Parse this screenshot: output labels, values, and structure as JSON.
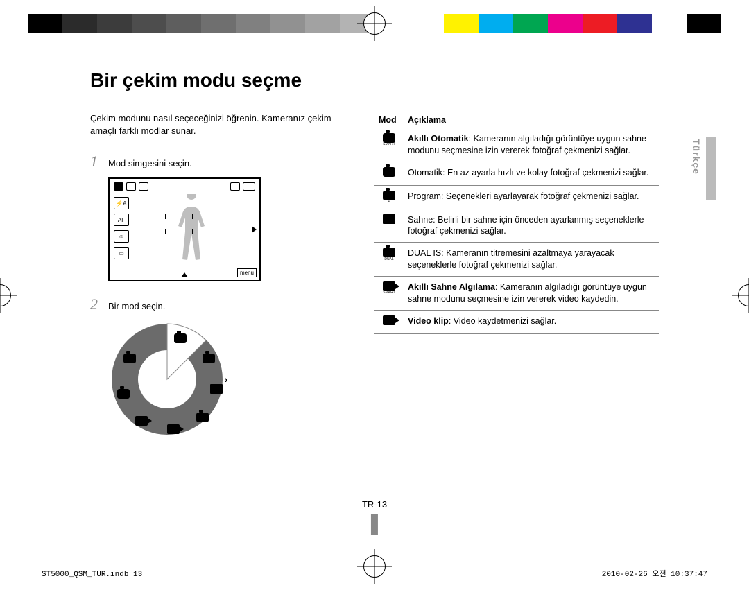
{
  "colorbar": [
    "#000000",
    "#2b2b2b",
    "#3c3c3c",
    "#4d4d4d",
    "#5e5e5e",
    "#6f6f6f",
    "#808080",
    "#919191",
    "#a2a2a2",
    "#b3b3b3",
    "#ffffff",
    "#ffffff",
    "#fff200",
    "#00adef",
    "#00a651",
    "#ec008c",
    "#ed1c24",
    "#2e3192",
    "#ffffff",
    "#000000"
  ],
  "heading": "Bir çekim modu seçme",
  "intro": "Çekim modunu nasıl seçeceğinizi öğrenin. Kameranız çekim amaçlı farklı modlar sunar.",
  "steps": {
    "1": {
      "num": "1",
      "text": "Mod simgesini seçin."
    },
    "2": {
      "num": "2",
      "text": "Bir mod seçin."
    }
  },
  "screen": {
    "menu": "menu"
  },
  "table": {
    "head": {
      "mod": "Mod",
      "desc": "Açıklama"
    },
    "rows": [
      {
        "icon": "cam-smart",
        "bold": "Akıllı Otomatik",
        "text": ": Kameranın algıladığı görüntüye uygun sahne modunu seçmesine izin vererek fotoğraf çekmenizi sağlar."
      },
      {
        "icon": "cam",
        "bold": "",
        "text": "Otomatik: En az ayarla hızlı ve kolay fotoğraf çekmenizi sağlar."
      },
      {
        "icon": "cam-p",
        "bold": "",
        "text": "Program: Seçenekleri ayarlayarak fotoğraf çekmenizi sağlar."
      },
      {
        "icon": "scene",
        "bold": "",
        "text": "Sahne: Belirli bir sahne için önceden ayarlanmış seçeneklerle fotoğraf çekmenizi sağlar."
      },
      {
        "icon": "cam-dual",
        "bold": "",
        "text": "DUAL IS: Kameranın titremesini azaltmaya yarayacak seçeneklerle fotoğraf çekmenizi sağlar."
      },
      {
        "icon": "vid-smart",
        "bold": "Akıllı Sahne Algılama",
        "text": ": Kameranın algıladığı görüntüye uygun sahne modunu seçmesine izin vererek video kaydedin."
      },
      {
        "icon": "vid",
        "bold": "Video klip",
        "text": ": Video kaydetmenizi sağlar."
      }
    ]
  },
  "sidetab": "Türkçe",
  "pagenum": "TR-13",
  "footer": {
    "left": "ST5000_QSM_TUR.indb   13",
    "right": "2010-02-26   오전 10:37:47"
  },
  "dial": {
    "outer_fill": "#6b6b6b",
    "inner_fill": "#ffffff",
    "highlight_stroke": "#ffffff"
  }
}
